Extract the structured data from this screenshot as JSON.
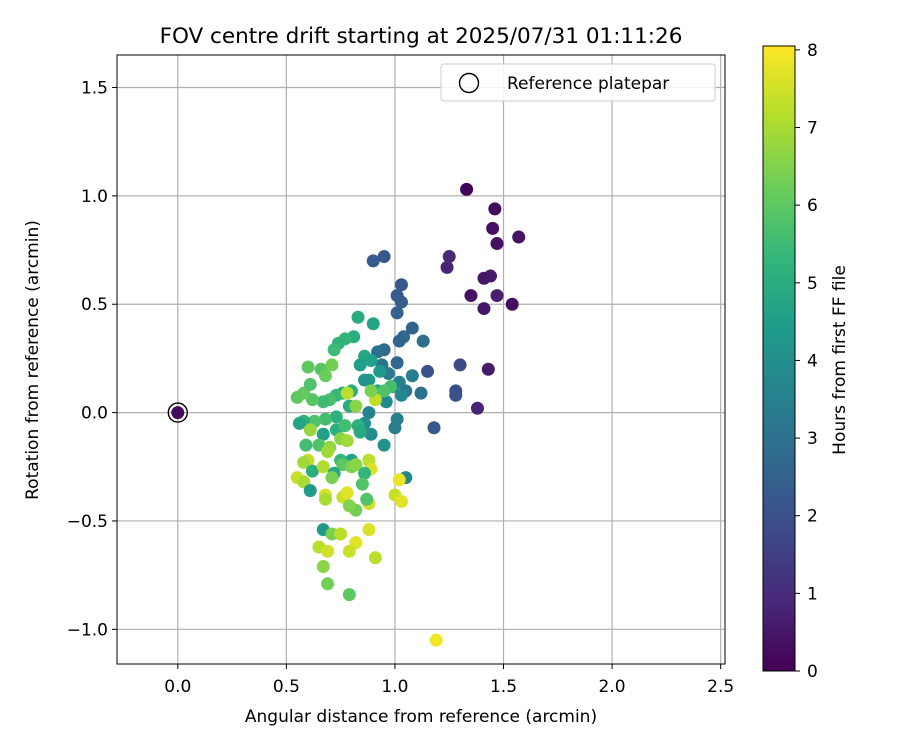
{
  "chart_data": {
    "type": "scatter",
    "title": "FOV centre drift starting at 2025/07/31 01:11:26",
    "xlabel": "Angular distance from reference (arcmin)",
    "ylabel": "Rotation from reference (arcmin)",
    "xlim": [
      -0.28,
      2.52
    ],
    "ylim": [
      -1.16,
      1.65
    ],
    "x_ticks": [
      0.0,
      0.5,
      1.0,
      1.5,
      2.0,
      2.5
    ],
    "x_tick_labels": [
      "0.0",
      "0.5",
      "1.0",
      "1.5",
      "2.0",
      "2.5"
    ],
    "y_ticks": [
      -1.0,
      -0.5,
      0.0,
      0.5,
      1.0,
      1.5
    ],
    "y_tick_labels": [
      "−1.0",
      "−0.5",
      "0.0",
      "0.5",
      "1.0",
      "1.5"
    ],
    "grid": true,
    "legend": {
      "placement": "top-right",
      "entries": [
        "Reference platepar"
      ]
    },
    "reference_point": {
      "x": 0.0,
      "y": 0.0,
      "hours": 0.2
    },
    "colorbar": {
      "label": "Hours from first FF file",
      "colormap": "viridis",
      "min": 0,
      "max": 8.05,
      "ticks": [
        0,
        1,
        2,
        3,
        4,
        5,
        6,
        7,
        8
      ],
      "tick_labels": [
        "0",
        "1",
        "2",
        "3",
        "4",
        "5",
        "6",
        "7",
        "8"
      ]
    },
    "points": [
      {
        "x": 1.33,
        "y": 1.03,
        "h": 0.1
      },
      {
        "x": 1.46,
        "y": 0.94,
        "h": 0.2
      },
      {
        "x": 1.45,
        "y": 0.85,
        "h": 0.3
      },
      {
        "x": 1.57,
        "y": 0.81,
        "h": 0.4
      },
      {
        "x": 1.47,
        "y": 0.78,
        "h": 0.35
      },
      {
        "x": 1.25,
        "y": 0.72,
        "h": 0.9
      },
      {
        "x": 1.24,
        "y": 0.67,
        "h": 0.8
      },
      {
        "x": 1.44,
        "y": 0.63,
        "h": 0.6
      },
      {
        "x": 1.41,
        "y": 0.62,
        "h": 0.5
      },
      {
        "x": 1.35,
        "y": 0.54,
        "h": 0.4
      },
      {
        "x": 1.47,
        "y": 0.54,
        "h": 0.7
      },
      {
        "x": 1.54,
        "y": 0.5,
        "h": 0.3
      },
      {
        "x": 1.41,
        "y": 0.48,
        "h": 0.5
      },
      {
        "x": 1.43,
        "y": 0.2,
        "h": 0.6
      },
      {
        "x": 1.38,
        "y": 0.02,
        "h": 0.8
      },
      {
        "x": 1.3,
        "y": 0.22,
        "h": 1.8
      },
      {
        "x": 1.28,
        "y": 0.1,
        "h": 1.9
      },
      {
        "x": 1.28,
        "y": 0.08,
        "h": 2.0
      },
      {
        "x": 1.18,
        "y": -0.07,
        "h": 2.2
      },
      {
        "x": 1.15,
        "y": 0.19,
        "h": 2.1
      },
      {
        "x": 0.95,
        "y": 0.72,
        "h": 2.2
      },
      {
        "x": 0.9,
        "y": 0.7,
        "h": 2.3
      },
      {
        "x": 1.03,
        "y": 0.59,
        "h": 2.2
      },
      {
        "x": 1.01,
        "y": 0.54,
        "h": 2.3
      },
      {
        "x": 1.03,
        "y": 0.51,
        "h": 2.4
      },
      {
        "x": 1.01,
        "y": 0.46,
        "h": 2.5
      },
      {
        "x": 1.08,
        "y": 0.39,
        "h": 2.6
      },
      {
        "x": 1.04,
        "y": 0.35,
        "h": 2.7
      },
      {
        "x": 1.13,
        "y": 0.33,
        "h": 2.9
      },
      {
        "x": 1.02,
        "y": 0.33,
        "h": 2.6
      },
      {
        "x": 0.95,
        "y": 0.29,
        "h": 2.8
      },
      {
        "x": 0.92,
        "y": 0.28,
        "h": 3.0
      },
      {
        "x": 1.01,
        "y": 0.23,
        "h": 2.7
      },
      {
        "x": 0.94,
        "y": 0.22,
        "h": 3.1
      },
      {
        "x": 0.97,
        "y": 0.18,
        "h": 3.3
      },
      {
        "x": 1.08,
        "y": 0.17,
        "h": 3.4
      },
      {
        "x": 1.02,
        "y": 0.14,
        "h": 3.5
      },
      {
        "x": 0.99,
        "y": 0.12,
        "h": 3.6
      },
      {
        "x": 1.05,
        "y": 0.1,
        "h": 3.2
      },
      {
        "x": 1.12,
        "y": 0.09,
        "h": 3.0
      },
      {
        "x": 1.03,
        "y": 0.08,
        "h": 3.7
      },
      {
        "x": 0.96,
        "y": 0.05,
        "h": 3.8
      },
      {
        "x": 0.88,
        "y": 0.0,
        "h": 3.6
      },
      {
        "x": 0.86,
        "y": -0.05,
        "h": 4.0
      },
      {
        "x": 1.01,
        "y": -0.03,
        "h": 3.5
      },
      {
        "x": 1.0,
        "y": -0.07,
        "h": 3.4
      },
      {
        "x": 0.89,
        "y": -0.1,
        "h": 3.9
      },
      {
        "x": 0.95,
        "y": -0.15,
        "h": 4.1
      },
      {
        "x": 1.05,
        "y": -0.3,
        "h": 3.7
      },
      {
        "x": 0.9,
        "y": 0.41,
        "h": 4.7
      },
      {
        "x": 0.83,
        "y": 0.44,
        "h": 4.9
      },
      {
        "x": 0.81,
        "y": 0.35,
        "h": 5.0
      },
      {
        "x": 0.77,
        "y": 0.34,
        "h": 5.3
      },
      {
        "x": 0.74,
        "y": 0.32,
        "h": 5.2
      },
      {
        "x": 0.72,
        "y": 0.29,
        "h": 5.5
      },
      {
        "x": 0.86,
        "y": 0.26,
        "h": 4.8
      },
      {
        "x": 0.84,
        "y": 0.22,
        "h": 4.5
      },
      {
        "x": 0.89,
        "y": 0.24,
        "h": 4.6
      },
      {
        "x": 0.93,
        "y": 0.19,
        "h": 4.3
      },
      {
        "x": 0.88,
        "y": 0.15,
        "h": 4.4
      },
      {
        "x": 0.86,
        "y": 0.15,
        "h": 4.2
      },
      {
        "x": 0.92,
        "y": 0.1,
        "h": 4.6
      },
      {
        "x": 0.98,
        "y": 0.12,
        "h": 5.6
      },
      {
        "x": 0.95,
        "y": 0.1,
        "h": 5.8
      },
      {
        "x": 0.8,
        "y": 0.1,
        "h": 5.0
      },
      {
        "x": 0.76,
        "y": 0.09,
        "h": 4.8
      },
      {
        "x": 0.73,
        "y": 0.08,
        "h": 5.4
      },
      {
        "x": 0.7,
        "y": 0.06,
        "h": 5.7
      },
      {
        "x": 0.67,
        "y": 0.05,
        "h": 5.5
      },
      {
        "x": 0.62,
        "y": 0.06,
        "h": 5.9
      },
      {
        "x": 0.58,
        "y": 0.09,
        "h": 6.1
      },
      {
        "x": 0.55,
        "y": 0.07,
        "h": 6.0
      },
      {
        "x": 0.61,
        "y": 0.13,
        "h": 5.8
      },
      {
        "x": 0.66,
        "y": 0.2,
        "h": 5.9
      },
      {
        "x": 0.68,
        "y": 0.17,
        "h": 6.2
      },
      {
        "x": 0.6,
        "y": 0.21,
        "h": 6.0
      },
      {
        "x": 0.71,
        "y": 0.22,
        "h": 6.3
      },
      {
        "x": 0.79,
        "y": 0.03,
        "h": 4.9
      },
      {
        "x": 0.82,
        "y": 0.03,
        "h": 6.6
      },
      {
        "x": 0.78,
        "y": 0.09,
        "h": 7.2
      },
      {
        "x": 0.91,
        "y": 0.06,
        "h": 7.3
      },
      {
        "x": 0.89,
        "y": 0.1,
        "h": 6.4
      },
      {
        "x": 0.73,
        "y": -0.02,
        "h": 5.1
      },
      {
        "x": 0.68,
        "y": -0.03,
        "h": 5.6
      },
      {
        "x": 0.63,
        "y": -0.04,
        "h": 5.8
      },
      {
        "x": 0.58,
        "y": -0.04,
        "h": 5.2
      },
      {
        "x": 0.56,
        "y": -0.05,
        "h": 4.7
      },
      {
        "x": 0.61,
        "y": -0.08,
        "h": 6.8
      },
      {
        "x": 0.67,
        "y": -0.1,
        "h": 4.5
      },
      {
        "x": 0.73,
        "y": -0.08,
        "h": 5.0
      },
      {
        "x": 0.77,
        "y": -0.06,
        "h": 5.6
      },
      {
        "x": 0.83,
        "y": -0.06,
        "h": 5.1
      },
      {
        "x": 0.84,
        "y": -0.09,
        "h": 4.9
      },
      {
        "x": 0.75,
        "y": -0.12,
        "h": 6.6
      },
      {
        "x": 0.78,
        "y": -0.13,
        "h": 6.9
      },
      {
        "x": 0.59,
        "y": -0.15,
        "h": 5.6
      },
      {
        "x": 0.65,
        "y": -0.15,
        "h": 5.8
      },
      {
        "x": 0.7,
        "y": -0.16,
        "h": 6.7
      },
      {
        "x": 0.69,
        "y": -0.18,
        "h": 6.9
      },
      {
        "x": 0.6,
        "y": -0.22,
        "h": 7.3
      },
      {
        "x": 0.58,
        "y": -0.23,
        "h": 6.9
      },
      {
        "x": 0.75,
        "y": -0.22,
        "h": 5.3
      },
      {
        "x": 0.8,
        "y": -0.22,
        "h": 4.6
      },
      {
        "x": 0.76,
        "y": -0.24,
        "h": 6.0
      },
      {
        "x": 0.62,
        "y": -0.27,
        "h": 5.1
      },
      {
        "x": 0.67,
        "y": -0.25,
        "h": 7.1
      },
      {
        "x": 0.8,
        "y": -0.25,
        "h": 6.4
      },
      {
        "x": 0.82,
        "y": -0.24,
        "h": 6.6
      },
      {
        "x": 0.88,
        "y": -0.22,
        "h": 7.2
      },
      {
        "x": 0.89,
        "y": -0.26,
        "h": 7.6
      },
      {
        "x": 0.86,
        "y": -0.28,
        "h": 5.3
      },
      {
        "x": 0.72,
        "y": -0.28,
        "h": 4.8
      },
      {
        "x": 0.55,
        "y": -0.3,
        "h": 7.4
      },
      {
        "x": 0.58,
        "y": -0.32,
        "h": 7.0
      },
      {
        "x": 0.71,
        "y": -0.3,
        "h": 6.4
      },
      {
        "x": 0.85,
        "y": -0.33,
        "h": 5.8
      },
      {
        "x": 0.61,
        "y": -0.36,
        "h": 4.3
      },
      {
        "x": 0.68,
        "y": -0.38,
        "h": 7.6
      },
      {
        "x": 0.68,
        "y": -0.4,
        "h": 7.0
      },
      {
        "x": 0.76,
        "y": -0.39,
        "h": 7.4
      },
      {
        "x": 0.78,
        "y": -0.37,
        "h": 7.7
      },
      {
        "x": 0.82,
        "y": -0.45,
        "h": 6.3
      },
      {
        "x": 0.79,
        "y": -0.43,
        "h": 6.5
      },
      {
        "x": 0.88,
        "y": -0.42,
        "h": 7.5
      },
      {
        "x": 0.87,
        "y": -0.4,
        "h": 5.8
      },
      {
        "x": 1.0,
        "y": -0.38,
        "h": 7.4
      },
      {
        "x": 1.03,
        "y": -0.41,
        "h": 7.7
      },
      {
        "x": 1.02,
        "y": -0.31,
        "h": 7.8
      },
      {
        "x": 0.67,
        "y": -0.54,
        "h": 4.3
      },
      {
        "x": 0.71,
        "y": -0.56,
        "h": 6.4
      },
      {
        "x": 0.75,
        "y": -0.56,
        "h": 7.2
      },
      {
        "x": 0.88,
        "y": -0.54,
        "h": 7.6
      },
      {
        "x": 0.82,
        "y": -0.6,
        "h": 7.7
      },
      {
        "x": 0.65,
        "y": -0.62,
        "h": 7.2
      },
      {
        "x": 0.69,
        "y": -0.64,
        "h": 7.5
      },
      {
        "x": 0.79,
        "y": -0.64,
        "h": 7.4
      },
      {
        "x": 0.91,
        "y": -0.67,
        "h": 7.2
      },
      {
        "x": 0.67,
        "y": -0.71,
        "h": 6.6
      },
      {
        "x": 0.69,
        "y": -0.79,
        "h": 6.3
      },
      {
        "x": 0.79,
        "y": -0.84,
        "h": 6.0
      },
      {
        "x": 1.19,
        "y": -1.05,
        "h": 7.9
      }
    ]
  }
}
